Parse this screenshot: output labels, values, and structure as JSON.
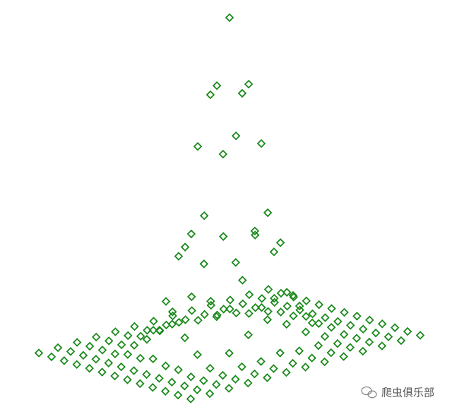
{
  "chart_data": {
    "type": "scatter3d",
    "marker": "diamond",
    "color": "#1a8a1a",
    "x": [
      -3,
      -2.5,
      -2,
      -1.5,
      -1,
      -0.5,
      0,
      0.5,
      1,
      1.5,
      2,
      2.5,
      3
    ],
    "y": [
      -3,
      -2.5,
      -2,
      -1.5,
      -1,
      -0.5,
      0,
      0.5,
      1,
      1.5,
      2,
      2.5,
      3
    ],
    "zlim": [
      0,
      1
    ],
    "z": [
      [
        0,
        0,
        0,
        0,
        0,
        0,
        0,
        0,
        0,
        0,
        0,
        0,
        0
      ],
      [
        0,
        0,
        0,
        0,
        0,
        0,
        0,
        0,
        0,
        0,
        0,
        0,
        0
      ],
      [
        0,
        0,
        0,
        0,
        0.01,
        0.01,
        0.02,
        0.01,
        0.01,
        0,
        0,
        0,
        0
      ],
      [
        0,
        0,
        0,
        0.01,
        0.04,
        0.08,
        0.11,
        0.08,
        0.04,
        0.01,
        0,
        0,
        0
      ],
      [
        0,
        0,
        0.01,
        0.04,
        0.14,
        0.29,
        0.37,
        0.29,
        0.14,
        0.04,
        0.01,
        0,
        0
      ],
      [
        0,
        0,
        0.01,
        0.08,
        0.29,
        0.61,
        0.78,
        0.61,
        0.29,
        0.08,
        0.01,
        0,
        0
      ],
      [
        0,
        0,
        0.02,
        0.11,
        0.37,
        0.78,
        1,
        0.78,
        0.37,
        0.11,
        0.02,
        0,
        0
      ],
      [
        0,
        0,
        0.01,
        0.08,
        0.29,
        0.61,
        0.78,
        0.61,
        0.29,
        0.08,
        0.01,
        0,
        0
      ],
      [
        0,
        0,
        0.01,
        0.04,
        0.14,
        0.29,
        0.37,
        0.29,
        0.14,
        0.04,
        0.01,
        0,
        0
      ],
      [
        0,
        0,
        0,
        0.01,
        0.04,
        0.08,
        0.11,
        0.08,
        0.04,
        0.01,
        0,
        0,
        0
      ],
      [
        0,
        0,
        0,
        0,
        0.01,
        0.01,
        0.02,
        0.01,
        0.01,
        0,
        0,
        0,
        0
      ],
      [
        0,
        0,
        0,
        0,
        0,
        0,
        0,
        0,
        0,
        0,
        0,
        0,
        0
      ],
      [
        0,
        0,
        0,
        0,
        0,
        0,
        0,
        0,
        0,
        0,
        0,
        0,
        0
      ]
    ]
  },
  "watermark": {
    "text": "爬虫俱乐部"
  }
}
